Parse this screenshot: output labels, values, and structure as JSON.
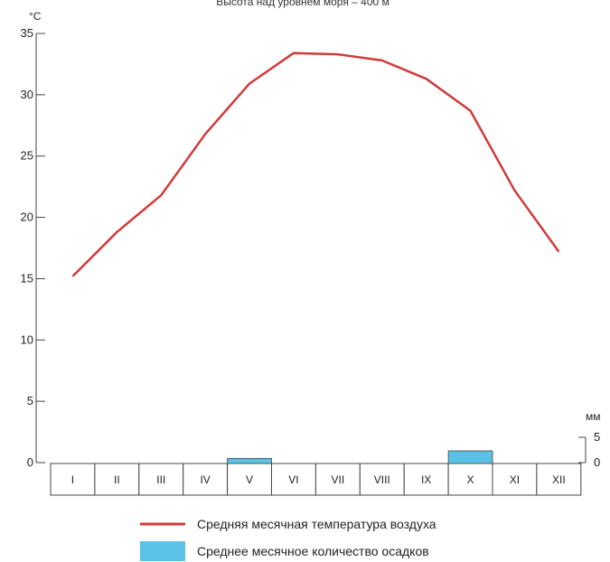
{
  "header": {
    "caption": "Высота над уровнем моря – 400 м"
  },
  "colors": {
    "temperature": "#d03a3a",
    "precipitation": "#5bc2e7",
    "axis": "#444444"
  },
  "chart_data": {
    "type": "line",
    "categories": [
      "I",
      "II",
      "III",
      "IV",
      "V",
      "VI",
      "VII",
      "VIII",
      "IX",
      "X",
      "XI",
      "XII"
    ],
    "series": [
      {
        "name": "Средняя месячная температура воздуха",
        "type": "line",
        "axis": "left",
        "values": [
          15.2,
          18.8,
          21.8,
          26.8,
          30.9,
          33.4,
          33.3,
          32.8,
          31.3,
          28.7,
          22.2,
          17.2
        ]
      },
      {
        "name": "Среднее месячное количество осадков",
        "type": "bar",
        "axis": "right",
        "values": [
          0,
          0,
          0,
          0,
          2,
          0,
          0,
          0,
          0,
          5,
          0,
          0
        ]
      }
    ],
    "y_left": {
      "unit": "°C",
      "ylim": [
        0,
        35
      ],
      "ticks": [
        "0",
        "5",
        "10",
        "15",
        "20",
        "25",
        "30",
        "35"
      ]
    },
    "y_right": {
      "unit": "мм",
      "ylim": [
        0,
        5
      ],
      "ticks": [
        "0",
        "5"
      ]
    },
    "grid": false,
    "legend": "bottom"
  }
}
